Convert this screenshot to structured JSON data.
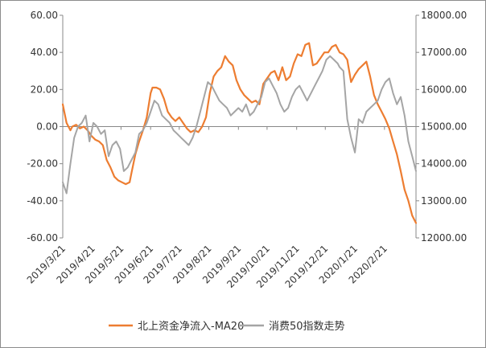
{
  "chart_data": {
    "type": "line",
    "title": "",
    "dual_axis": true,
    "left_axis": {
      "min": -60,
      "max": 60,
      "step": 20,
      "ticks": [
        "60.00",
        "40.00",
        "20.00",
        "0.00",
        "-20.00",
        "-40.00",
        "-60.00"
      ]
    },
    "right_axis": {
      "min": 12000,
      "max": 18000,
      "step": 1000,
      "ticks": [
        "18000.00",
        "17000.00",
        "16000.00",
        "15000.00",
        "14000.00",
        "13000.00",
        "12000.00"
      ]
    },
    "x_range": [
      0,
      370
    ],
    "x_ticks": [
      {
        "label": "2019/3/21",
        "x": 0
      },
      {
        "label": "2019/4/21",
        "x": 31
      },
      {
        "label": "2019/5/21",
        "x": 61
      },
      {
        "label": "2019/6/21",
        "x": 92
      },
      {
        "label": "2019/7/21",
        "x": 122
      },
      {
        "label": "2019/8/21",
        "x": 153
      },
      {
        "label": "2019/9/21",
        "x": 184
      },
      {
        "label": "2019/10/21",
        "x": 214
      },
      {
        "label": "2019/11/21",
        "x": 245
      },
      {
        "label": "2019/12/21",
        "x": 275
      },
      {
        "label": "2020/1/21",
        "x": 306
      },
      {
        "label": "2020/2/21",
        "x": 337
      }
    ],
    "series": [
      {
        "name": "北上资金净流入-MA20",
        "axis": "left",
        "color": "#ED7D31",
        "x": [
          0,
          4,
          8,
          10,
          14,
          18,
          22,
          26,
          30,
          34,
          38,
          42,
          46,
          50,
          54,
          58,
          62,
          66,
          70,
          72,
          76,
          80,
          84,
          88,
          92,
          94,
          98,
          102,
          106,
          110,
          114,
          118,
          122,
          126,
          130,
          134,
          138,
          142,
          146,
          150,
          154,
          158,
          162,
          166,
          170,
          174,
          178,
          182,
          186,
          190,
          194,
          198,
          202,
          206,
          210,
          214,
          218,
          222,
          226,
          230,
          234,
          238,
          242,
          246,
          250,
          254,
          258,
          262,
          266,
          270,
          274,
          278,
          282,
          286,
          290,
          294,
          298,
          302,
          306,
          310,
          314,
          318,
          322,
          326,
          330,
          334,
          338,
          342,
          346,
          350,
          354,
          358,
          362,
          366,
          370
        ],
        "values": [
          12,
          2,
          -2,
          0,
          1,
          -1,
          0,
          -2,
          -5,
          -7,
          -8,
          -10,
          -18,
          -22,
          -27,
          -29,
          -30,
          -31,
          -30,
          -25,
          -15,
          -8,
          -2,
          5,
          18,
          21,
          21,
          20,
          15,
          8,
          5,
          3,
          5,
          2,
          -1,
          -3,
          -2,
          -3,
          0,
          5,
          18,
          27,
          30,
          32,
          38,
          35,
          33,
          25,
          20,
          17,
          15,
          13,
          14,
          12,
          23,
          26,
          29,
          30,
          25,
          32,
          25,
          27,
          34,
          39,
          38,
          44,
          45,
          33,
          34,
          37,
          40,
          40,
          43,
          44,
          40,
          39,
          36,
          24,
          28,
          31,
          33,
          35,
          27,
          17,
          12,
          8,
          4,
          -1,
          -8,
          -15,
          -24,
          -34,
          -40,
          -48,
          -52
        ]
      },
      {
        "name": "消费50指数走势",
        "axis": "right",
        "color": "#A5A5A5",
        "x": [
          0,
          4,
          8,
          12,
          16,
          20,
          24,
          28,
          32,
          36,
          40,
          44,
          48,
          52,
          56,
          60,
          64,
          68,
          72,
          76,
          80,
          84,
          88,
          92,
          96,
          100,
          104,
          108,
          112,
          116,
          120,
          124,
          128,
          132,
          136,
          140,
          144,
          148,
          152,
          156,
          160,
          164,
          168,
          172,
          176,
          180,
          184,
          188,
          192,
          196,
          200,
          204,
          208,
          212,
          216,
          220,
          224,
          228,
          232,
          236,
          240,
          244,
          248,
          252,
          256,
          260,
          264,
          268,
          272,
          276,
          280,
          284,
          288,
          290,
          294,
          298,
          302,
          306,
          310,
          314,
          318,
          322,
          326,
          330,
          334,
          338,
          342,
          346,
          350,
          354,
          358,
          362,
          366,
          370
        ],
        "values": [
          13500,
          13200,
          14000,
          14700,
          15000,
          15100,
          15300,
          14600,
          15100,
          15000,
          14800,
          14900,
          14200,
          14500,
          14600,
          14400,
          13800,
          13900,
          14100,
          14300,
          14800,
          14900,
          15100,
          15400,
          15700,
          15600,
          15300,
          15200,
          15100,
          14900,
          14800,
          14700,
          14600,
          14500,
          14700,
          15000,
          15400,
          15800,
          16200,
          16100,
          15900,
          15700,
          15600,
          15500,
          15300,
          15400,
          15500,
          15400,
          15600,
          15300,
          15400,
          15600,
          15800,
          16200,
          16300,
          16100,
          15900,
          15600,
          15400,
          15500,
          15800,
          16000,
          16100,
          15900,
          15700,
          15900,
          16100,
          16300,
          16500,
          16800,
          16900,
          16800,
          16700,
          16600,
          16500,
          15200,
          14700,
          14300,
          15200,
          15100,
          15400,
          15500,
          15600,
          15700,
          16000,
          16200,
          16300,
          15900,
          15600,
          15800,
          15300,
          14600,
          14200,
          13800
        ]
      }
    ],
    "legend": {
      "position": "bottom-center"
    }
  }
}
